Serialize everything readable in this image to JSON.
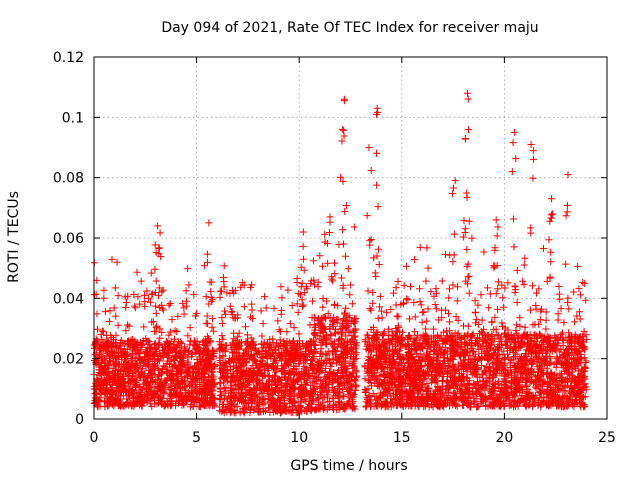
{
  "chart_data": {
    "type": "scatter",
    "title": "Day 094 of 2021, Rate Of TEC Index for receiver maju",
    "xlabel": "GPS time / hours",
    "ylabel": "ROTI / TECUs",
    "xlim": [
      0,
      25
    ],
    "ylim": [
      0,
      0.12
    ],
    "x_ticks": [
      0,
      5,
      10,
      15,
      20,
      25
    ],
    "x_tick_labels": [
      "0",
      "5",
      "10",
      "15",
      "20",
      "25"
    ],
    "y_ticks": [
      0,
      0.02,
      0.04,
      0.06,
      0.08,
      0.1,
      0.12
    ],
    "y_tick_labels": [
      "0",
      "0.02",
      "0.04",
      "0.06",
      "0.08",
      "0.1",
      "0.12"
    ],
    "grid": true,
    "marker": "+",
    "series": [
      {
        "name": "ROTI",
        "color": "#ff0000",
        "segments": [
          {
            "x_start": 0.0,
            "x_end": 5.9,
            "y_min": 0.004,
            "y_max": 0.026,
            "spike_max": 0.054
          },
          {
            "x_start": 6.1,
            "x_end": 10.7,
            "y_min": 0.002,
            "y_max": 0.026,
            "spike_max": 0.056
          },
          {
            "x_start": 10.7,
            "x_end": 12.8,
            "y_min": 0.003,
            "y_max": 0.034,
            "spike_max": 0.07
          },
          {
            "x_start": 13.2,
            "x_end": 24.0,
            "y_min": 0.004,
            "y_max": 0.028,
            "spike_max": 0.06
          }
        ],
        "peaks": [
          {
            "x": 3.1,
            "y": 0.064
          },
          {
            "x": 5.6,
            "y": 0.065
          },
          {
            "x": 10.2,
            "y": 0.062
          },
          {
            "x": 11.5,
            "y": 0.067
          },
          {
            "x": 12.1,
            "y": 0.096
          },
          {
            "x": 12.2,
            "y": 0.106
          },
          {
            "x": 13.8,
            "y": 0.103
          },
          {
            "x": 13.4,
            "y": 0.09
          },
          {
            "x": 17.6,
            "y": 0.079
          },
          {
            "x": 18.2,
            "y": 0.108
          },
          {
            "x": 18.1,
            "y": 0.093
          },
          {
            "x": 19.6,
            "y": 0.066
          },
          {
            "x": 20.5,
            "y": 0.095
          },
          {
            "x": 21.3,
            "y": 0.091
          },
          {
            "x": 22.3,
            "y": 0.073
          },
          {
            "x": 23.1,
            "y": 0.081
          }
        ]
      }
    ]
  }
}
